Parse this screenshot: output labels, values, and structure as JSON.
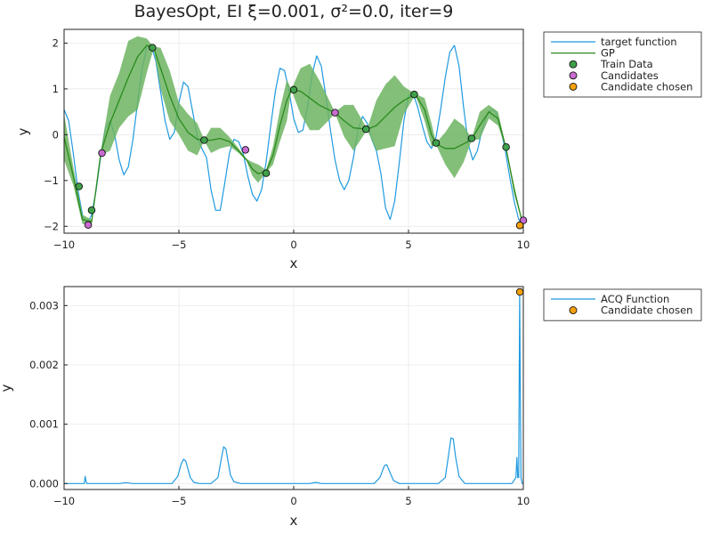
{
  "chart_data": [
    {
      "type": "line",
      "title": "BayesOpt, EI ξ=0.001, σ²=0.0, iter=9",
      "xlabel": "x",
      "ylabel": "y",
      "xlim": [
        -10,
        10
      ],
      "ylim": [
        -2.15,
        2.3
      ],
      "xticks": [
        -10,
        -5,
        0,
        5,
        10
      ],
      "xtick_labels": [
        "−10",
        "−5",
        "0",
        "5",
        "10"
      ],
      "yticks": [
        -2,
        -1,
        0,
        1,
        2
      ],
      "ytick_labels": [
        "−2",
        "−1",
        "0",
        "1",
        "2"
      ],
      "grid": true,
      "legend_position": "outside-top-right",
      "colors": {
        "target": "#1f9ae0",
        "gp": "#2a8a1c",
        "band": "#6db462",
        "train": "#3fa14a",
        "candidates": "#c86bd0",
        "chosen": "#f5a10d"
      },
      "series": [
        {
          "name": "target function",
          "kind": "line",
          "x": [
            -10.0,
            -9.8,
            -9.6,
            -9.4,
            -9.2,
            -9.0,
            -8.8,
            -8.6,
            -8.4,
            -8.2,
            -8.0,
            -7.8,
            -7.6,
            -7.4,
            -7.2,
            -7.0,
            -6.8,
            -6.6,
            -6.4,
            -6.2,
            -6.0,
            -5.8,
            -5.6,
            -5.4,
            -5.2,
            -5.0,
            -4.8,
            -4.6,
            -4.4,
            -4.2,
            -4.0,
            -3.8,
            -3.6,
            -3.4,
            -3.2,
            -3.0,
            -2.8,
            -2.6,
            -2.4,
            -2.2,
            -2.0,
            -1.8,
            -1.6,
            -1.4,
            -1.2,
            -1.0,
            -0.8,
            -0.6,
            -0.4,
            -0.2,
            0.0,
            0.2,
            0.4,
            0.6,
            0.8,
            1.0,
            1.2,
            1.4,
            1.6,
            1.8,
            2.0,
            2.2,
            2.4,
            2.6,
            2.8,
            3.0,
            3.2,
            3.4,
            3.6,
            3.8,
            4.0,
            4.2,
            4.4,
            4.6,
            4.8,
            5.0,
            5.2,
            5.4,
            5.6,
            5.8,
            6.0,
            6.2,
            6.4,
            6.6,
            6.8,
            7.0,
            7.2,
            7.4,
            7.6,
            7.8,
            8.0,
            8.2,
            8.4,
            8.6,
            8.8,
            9.0,
            9.2,
            9.4,
            9.6,
            9.8,
            10.0
          ],
          "y": [
            0.55,
            0.3,
            -0.4,
            -1.2,
            -1.75,
            -1.95,
            -1.75,
            -1.2,
            -0.45,
            0.15,
            0.3,
            0.0,
            -0.55,
            -0.88,
            -0.7,
            -0.1,
            0.7,
            1.45,
            1.9,
            1.95,
            1.6,
            0.95,
            0.3,
            -0.1,
            0.05,
            0.7,
            1.15,
            1.05,
            0.5,
            -0.05,
            -0.3,
            -0.5,
            -1.2,
            -1.65,
            -1.65,
            -1.05,
            -0.4,
            -0.1,
            -0.15,
            -0.4,
            -0.9,
            -1.3,
            -1.45,
            -1.2,
            -0.6,
            0.2,
            0.95,
            1.45,
            1.4,
            0.95,
            0.35,
            0.05,
            0.1,
            0.6,
            1.3,
            1.72,
            1.5,
            0.85,
            0.1,
            -0.55,
            -1.0,
            -1.2,
            -1.0,
            -0.5,
            0.1,
            0.4,
            0.25,
            -0.1,
            -0.35,
            -0.85,
            -1.6,
            -1.85,
            -1.45,
            -0.6,
            0.3,
            0.85,
            0.9,
            0.6,
            0.2,
            -0.15,
            -0.3,
            -0.05,
            0.55,
            1.25,
            1.8,
            1.95,
            1.5,
            0.6,
            -0.2,
            -0.55,
            -0.35,
            0.1,
            0.4,
            0.55,
            0.5,
            0.15,
            -0.3,
            -0.9,
            -1.45,
            -1.85,
            -2.0
          ]
        },
        {
          "name": "GP",
          "kind": "mean_with_band",
          "x": [
            -10.0,
            -9.6,
            -9.2,
            -8.8,
            -8.4,
            -8.0,
            -7.6,
            -7.2,
            -6.8,
            -6.4,
            -6.1,
            -5.8,
            -5.4,
            -5.0,
            -4.6,
            -4.2,
            -3.9,
            -3.6,
            -3.2,
            -2.8,
            -2.4,
            -2.05,
            -1.8,
            -1.55,
            -1.2,
            -0.9,
            -0.6,
            -0.3,
            -0.1,
            0.3,
            0.7,
            1.1,
            1.5,
            1.8,
            2.2,
            2.6,
            3.2,
            3.6,
            4.0,
            4.4,
            4.8,
            5.3,
            5.7,
            6.0,
            6.2,
            6.6,
            7.0,
            7.4,
            7.75,
            8.1,
            8.5,
            8.9,
            9.25,
            9.6,
            10.0
          ],
          "y": [
            -0.05,
            -0.9,
            -1.85,
            -1.9,
            -0.4,
            0.25,
            0.75,
            1.25,
            1.7,
            1.95,
            1.9,
            1.45,
            0.85,
            0.35,
            0.05,
            -0.1,
            -0.12,
            -0.12,
            -0.08,
            -0.15,
            -0.35,
            -0.55,
            -0.75,
            -0.85,
            -0.8,
            -0.45,
            0.2,
            0.75,
            0.98,
            0.95,
            0.8,
            0.65,
            0.55,
            0.48,
            0.3,
            0.15,
            0.12,
            0.2,
            0.4,
            0.6,
            0.75,
            0.88,
            0.55,
            0.0,
            -0.2,
            -0.3,
            -0.3,
            -0.2,
            -0.1,
            0.2,
            0.5,
            0.35,
            -0.3,
            -1.2,
            -2.0
          ],
          "lower": [
            -0.55,
            -1.1,
            -1.95,
            -1.95,
            -0.45,
            -0.35,
            0.15,
            0.4,
            0.55,
            1.35,
            1.88,
            1.0,
            0.3,
            0.0,
            -0.35,
            -0.45,
            -0.13,
            -0.4,
            -0.3,
            -0.25,
            -0.4,
            -0.57,
            -0.9,
            -1.05,
            -0.83,
            -0.65,
            -0.15,
            0.3,
            0.97,
            0.45,
            0.1,
            0.1,
            0.3,
            0.47,
            -0.05,
            -0.35,
            0.11,
            -0.35,
            -0.3,
            -0.25,
            0.45,
            0.87,
            0.3,
            -0.25,
            -0.22,
            -0.65,
            -0.95,
            -0.6,
            -0.12,
            -0.1,
            0.35,
            0.2,
            -0.32,
            -1.3,
            -2.0
          ],
          "upper": [
            0.45,
            -0.7,
            -1.75,
            -1.85,
            -0.35,
            0.85,
            1.35,
            2.05,
            2.15,
            2.1,
            1.92,
            1.9,
            1.4,
            0.7,
            0.45,
            0.25,
            -0.11,
            0.15,
            0.15,
            -0.05,
            -0.3,
            -0.53,
            -0.6,
            -0.65,
            -0.77,
            -0.25,
            0.55,
            1.2,
            0.99,
            1.45,
            1.55,
            1.2,
            0.8,
            0.49,
            0.65,
            0.65,
            0.13,
            0.75,
            1.1,
            1.3,
            1.05,
            0.89,
            0.8,
            0.25,
            -0.18,
            0.05,
            0.35,
            0.2,
            -0.08,
            0.5,
            0.65,
            0.5,
            -0.28,
            -1.1,
            -2.0
          ]
        },
        {
          "name": "Train Data",
          "kind": "scatter",
          "x": [
            -9.35,
            -8.8,
            -6.15,
            -3.9,
            -1.2,
            0.0,
            3.15,
            5.25,
            6.2,
            7.75,
            9.25,
            9.85
          ],
          "y": [
            -1.13,
            -1.65,
            1.9,
            -0.12,
            -0.84,
            0.98,
            0.12,
            0.88,
            -0.18,
            -0.08,
            -0.27,
            -1.98
          ]
        },
        {
          "name": "Candidates",
          "kind": "scatter",
          "x": [
            -8.95,
            -8.35,
            -2.1,
            1.8,
            10.0
          ],
          "y": [
            -1.97,
            -0.4,
            -0.33,
            0.48,
            -1.87
          ]
        },
        {
          "name": "Candidate chosen",
          "kind": "scatter",
          "x": [
            9.85
          ],
          "y": [
            -1.98
          ]
        }
      ]
    },
    {
      "type": "line",
      "title": "",
      "xlabel": "x",
      "ylabel": "y",
      "xlim": [
        -10,
        10
      ],
      "ylim": [
        -0.0001,
        0.00332
      ],
      "xticks": [
        -10,
        -5,
        0,
        5,
        10
      ],
      "xtick_labels": [
        "−10",
        "−5",
        "0",
        "5",
        "10"
      ],
      "yticks": [
        0.0,
        0.001,
        0.002,
        0.003
      ],
      "ytick_labels": [
        "0.000",
        "0.001",
        "0.002",
        "0.003"
      ],
      "grid": true,
      "legend_position": "outside-top-right",
      "colors": {
        "acq": "#1f9ae0",
        "chosen": "#f5a10d"
      },
      "series": [
        {
          "name": "ACQ Function",
          "kind": "line",
          "x": [
            -10.0,
            -9.2,
            -9.12,
            -9.08,
            -9.04,
            -9.0,
            -8.5,
            -7.6,
            -7.3,
            -7.0,
            -6.0,
            -5.3,
            -5.05,
            -4.9,
            -4.8,
            -4.7,
            -4.6,
            -4.5,
            -4.35,
            -4.1,
            -3.6,
            -3.3,
            -3.15,
            -3.05,
            -2.95,
            -2.85,
            -2.75,
            -2.6,
            -2.3,
            -1.0,
            0.7,
            0.95,
            1.2,
            2.0,
            3.5,
            3.75,
            3.95,
            4.05,
            4.2,
            4.35,
            4.6,
            6.3,
            6.6,
            6.75,
            6.85,
            6.95,
            7.05,
            7.2,
            7.45,
            9.5,
            9.68,
            9.72,
            9.76,
            9.8,
            9.84,
            9.87,
            9.9,
            9.95,
            10.0
          ],
          "y": [
            0.0,
            0.0,
            0.0,
            0.00012,
            3e-05,
            0.0,
            0.0,
            0.0,
            1.5e-05,
            0.0,
            0.0,
            0.0,
            0.00012,
            0.00033,
            0.00041,
            0.00038,
            0.00024,
            0.0001,
            2e-05,
            0.0,
            0.0,
            0.0001,
            0.00042,
            0.00062,
            0.00058,
            0.00035,
            0.00014,
            3e-05,
            0.0,
            0.0,
            0.0,
            2e-05,
            0.0,
            0.0,
            0.0,
            0.0001,
            0.0003,
            0.00032,
            0.00018,
            5e-05,
            0.0,
            0.0,
            0.0001,
            0.0005,
            0.00077,
            0.00075,
            0.00045,
            0.00012,
            0.0,
            0.0,
            0.0001,
            0.00044,
            0.0001,
            0.0001,
            0.00323,
            0.0016,
            0.0001,
            0.0,
            0.0
          ]
        },
        {
          "name": "Candidate chosen",
          "kind": "scatter",
          "x": [
            9.85
          ],
          "y": [
            0.00323
          ]
        }
      ]
    }
  ]
}
